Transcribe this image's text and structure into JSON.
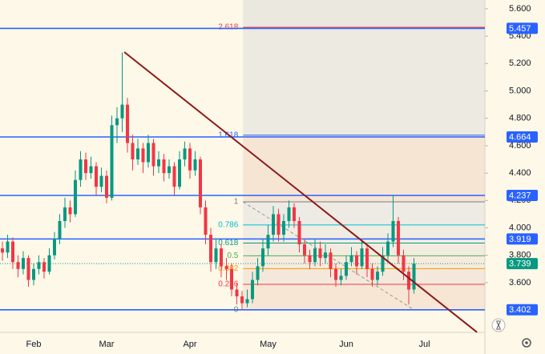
{
  "chart_data": {
    "type": "candlestick",
    "categories": [
      null,
      null,
      null,
      null,
      null,
      null,
      "Feb",
      null,
      null,
      null,
      null,
      null,
      null,
      null,
      null,
      null,
      null,
      null,
      null,
      null,
      "Mar",
      null,
      null,
      null,
      null,
      null,
      null,
      null,
      null,
      null,
      null,
      null,
      null,
      null,
      null,
      null,
      "Apr",
      null,
      null,
      null,
      null,
      null,
      null,
      null,
      null,
      null,
      null,
      null,
      null,
      null,
      null,
      "May",
      null,
      null,
      null,
      null,
      null,
      null,
      null,
      null,
      null,
      null,
      null,
      null,
      null,
      null,
      "Jun",
      null,
      null,
      null,
      null,
      null,
      null,
      null,
      null,
      null,
      null,
      null,
      null,
      null,
      null,
      "Jul",
      null,
      null,
      null,
      null,
      null,
      null,
      null,
      null,
      null,
      null
    ],
    "open": [
      3.85,
      3.82,
      3.9,
      3.75,
      3.7,
      3.78,
      3.62,
      3.7,
      3.75,
      3.68,
      3.8,
      3.92,
      4.05,
      4.15,
      4.1,
      4.35,
      4.5,
      4.4,
      4.45,
      4.3,
      4.38,
      4.22,
      4.75,
      4.8,
      4.9,
      4.62,
      4.5,
      4.58,
      4.48,
      4.62,
      4.45,
      4.5,
      4.4,
      4.45,
      4.3,
      4.5,
      4.58,
      4.42,
      4.5,
      4.15,
      3.95,
      3.75,
      3.85,
      3.72,
      3.7,
      3.55,
      3.5,
      3.45,
      3.48,
      3.62,
      3.72,
      3.85,
      3.95,
      4.1,
      3.95,
      4.05,
      4.15,
      4.05,
      3.88,
      3.8,
      3.75,
      3.85,
      3.78,
      3.82,
      3.7,
      3.62,
      3.65,
      3.75,
      3.8,
      3.72,
      3.85,
      3.7,
      3.62,
      3.68,
      3.8,
      3.9,
      4.05,
      3.8,
      3.68,
      3.55,
      null,
      null,
      null,
      null,
      null,
      null,
      null,
      null,
      null,
      null,
      null,
      null
    ],
    "high": [
      3.9,
      3.95,
      3.93,
      3.8,
      3.83,
      3.8,
      3.74,
      3.8,
      3.78,
      3.85,
      3.97,
      4.1,
      4.22,
      4.2,
      4.42,
      4.56,
      4.55,
      4.52,
      4.48,
      4.44,
      4.42,
      4.82,
      4.88,
      5.28,
      4.95,
      4.68,
      4.65,
      4.62,
      4.68,
      4.65,
      4.56,
      4.54,
      4.5,
      4.48,
      4.56,
      4.63,
      4.62,
      4.56,
      4.52,
      4.2,
      4.0,
      3.92,
      3.88,
      3.78,
      3.74,
      3.6,
      3.54,
      3.55,
      3.68,
      3.78,
      3.92,
      4.02,
      4.16,
      4.14,
      4.1,
      4.2,
      4.18,
      4.08,
      3.92,
      3.84,
      3.92,
      3.9,
      3.88,
      3.85,
      3.74,
      3.7,
      3.8,
      3.86,
      3.83,
      3.9,
      3.88,
      3.74,
      3.72,
      3.86,
      3.96,
      4.24,
      4.08,
      3.84,
      3.72,
      3.78,
      null,
      null,
      null,
      null,
      null,
      null,
      null,
      null,
      null,
      null,
      null,
      null
    ],
    "low": [
      3.76,
      3.78,
      3.7,
      3.64,
      3.66,
      3.57,
      3.58,
      3.66,
      3.63,
      3.66,
      3.77,
      3.88,
      4.0,
      4.04,
      4.08,
      4.3,
      4.35,
      4.36,
      4.24,
      4.26,
      4.18,
      4.2,
      4.62,
      4.7,
      4.55,
      4.42,
      4.46,
      4.4,
      4.44,
      4.38,
      4.4,
      4.34,
      4.36,
      4.24,
      4.28,
      4.45,
      4.36,
      4.38,
      4.1,
      3.88,
      3.68,
      3.7,
      3.64,
      3.62,
      3.5,
      3.44,
      3.4,
      3.42,
      3.45,
      3.58,
      3.68,
      3.8,
      3.9,
      3.9,
      3.9,
      4.0,
      4.0,
      3.82,
      3.74,
      3.7,
      3.72,
      3.72,
      3.74,
      3.64,
      3.57,
      3.58,
      3.62,
      3.72,
      3.66,
      3.7,
      3.64,
      3.57,
      3.58,
      3.65,
      3.76,
      3.86,
      3.74,
      3.62,
      3.44,
      3.52,
      null,
      null,
      null,
      null,
      null,
      null,
      null,
      null,
      null,
      null,
      null,
      null
    ],
    "close": [
      3.82,
      3.9,
      3.75,
      3.7,
      3.78,
      3.62,
      3.7,
      3.75,
      3.68,
      3.8,
      3.92,
      4.05,
      4.15,
      4.1,
      4.35,
      4.5,
      4.4,
      4.45,
      4.3,
      4.38,
      4.22,
      4.75,
      4.8,
      4.9,
      4.62,
      4.5,
      4.58,
      4.48,
      4.62,
      4.45,
      4.5,
      4.4,
      4.45,
      4.3,
      4.5,
      4.58,
      4.42,
      4.5,
      4.15,
      3.95,
      3.75,
      3.85,
      3.72,
      3.7,
      3.55,
      3.5,
      3.45,
      3.48,
      3.62,
      3.72,
      3.85,
      3.95,
      4.1,
      3.95,
      4.05,
      4.15,
      4.05,
      3.88,
      3.8,
      3.75,
      3.85,
      3.78,
      3.82,
      3.7,
      3.62,
      3.65,
      3.75,
      3.8,
      3.72,
      3.85,
      3.7,
      3.62,
      3.68,
      3.8,
      3.9,
      4.05,
      3.8,
      3.68,
      3.55,
      3.74,
      null,
      null,
      null,
      null,
      null,
      null,
      null,
      null,
      null,
      null,
      null,
      null
    ],
    "up_color": "#089981",
    "down_color": "#f23645",
    "ylim": [
      3.237,
      5.664
    ],
    "yticks": [
      {
        "value": 5.6,
        "label": "5.600"
      },
      {
        "value": 5.4,
        "label": "5.400"
      },
      {
        "value": 5.2,
        "label": "5.200"
      },
      {
        "value": 5.0,
        "label": "5.000"
      },
      {
        "value": 4.8,
        "label": "4.800"
      },
      {
        "value": 4.6,
        "label": "4.600"
      },
      {
        "value": 4.4,
        "label": "4.400"
      },
      {
        "value": 4.2,
        "label": "4.200"
      },
      {
        "value": 4.0,
        "label": "4.000"
      },
      {
        "value": 3.8,
        "label": "3.800"
      },
      {
        "value": 3.6,
        "label": "3.600"
      }
    ],
    "levels": [
      5.457,
      4.664,
      4.237,
      3.919,
      3.402
    ],
    "level_color": "#2962ff",
    "last_price": 3.739,
    "last_color": "#089981",
    "fib": {
      "start": 46.2,
      "end": 92.8,
      "price0": 3.402,
      "price1": 4.19,
      "ratios": [
        0,
        0.236,
        0.382,
        0.5,
        0.618,
        0.786,
        1,
        1.618,
        2.618
      ],
      "colors": [
        "#787b86",
        "#f23645",
        "#ff9800",
        "#4caf50",
        "#089981",
        "#00bcd4",
        "#787b86",
        "#2962ff",
        "#f23645"
      ]
    },
    "trendline": {
      "start": [
        23.4,
        5.284
      ],
      "end": [
        91.1,
        3.238
      ],
      "color": "#8b1a1a"
    },
    "fib_trend": {
      "start": [
        46.2,
        4.19
      ],
      "end": [
        79,
        3.402
      ]
    }
  }
}
